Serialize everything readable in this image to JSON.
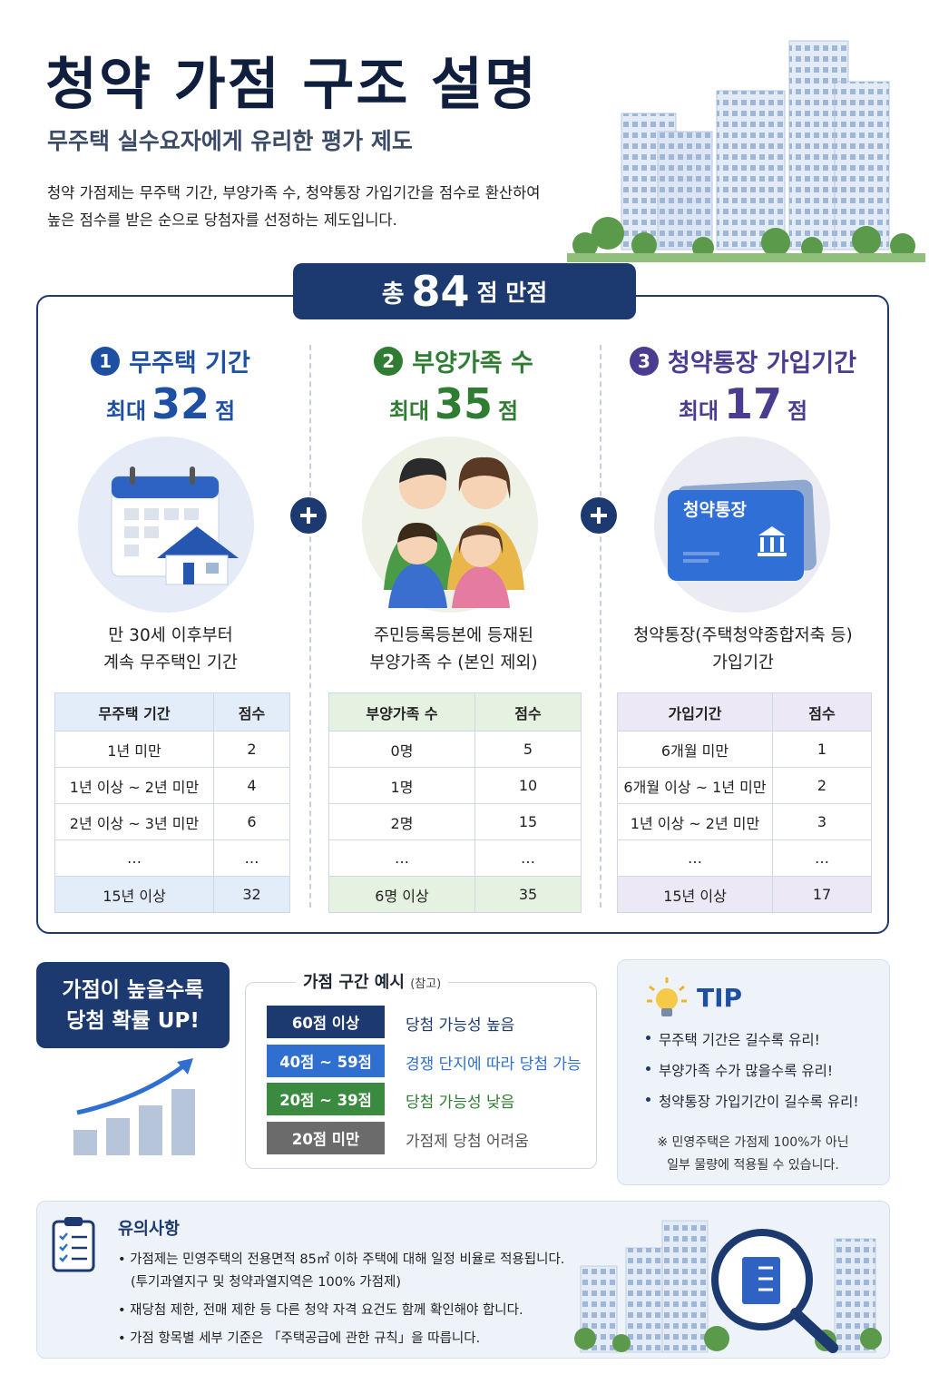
{
  "header": {
    "title": "청약 가점 구조 설명",
    "subtitle": "무주택 실수요자에게 유리한 평가 제도",
    "description": [
      "청약 가점제는 무주택 기간, 부양가족 수, 청약통장 가입기간을 점수로 환산하여",
      "높은 점수를 받은 순으로 당첨자를 선정하는 제도입니다."
    ]
  },
  "total": {
    "prefix": "총",
    "score": "84",
    "suffix": "점 만점"
  },
  "columns": [
    {
      "number": "1",
      "title": "무주택 기간",
      "max_prefix": "최대",
      "max": "32",
      "max_suffix": "점",
      "description": [
        "만 30세 이후부터",
        "계속 무주택인 기간"
      ],
      "table": {
        "header": [
          "무주택 기간",
          "점수"
        ],
        "rows": [
          [
            "1년 미만",
            "2"
          ],
          [
            "1년 이상 ~ 2년 미만",
            "4"
          ],
          [
            "2년 이상 ~ 3년 미만",
            "6"
          ],
          [
            "…",
            "…"
          ],
          [
            "15년 이상",
            "32"
          ]
        ]
      }
    },
    {
      "number": "2",
      "title": "부양가족 수",
      "max_prefix": "최대",
      "max": "35",
      "max_suffix": "점",
      "description": [
        "주민등록등본에 등재된",
        "부양가족 수 (본인 제외)"
      ],
      "table": {
        "header": [
          "부양가족 수",
          "점수"
        ],
        "rows": [
          [
            "0명",
            "5"
          ],
          [
            "1명",
            "10"
          ],
          [
            "2명",
            "15"
          ],
          [
            "…",
            "…"
          ],
          [
            "6명 이상",
            "35"
          ]
        ]
      }
    },
    {
      "number": "3",
      "title": "청약통장 가입기간",
      "max_prefix": "최대",
      "max": "17",
      "max_suffix": "점",
      "icon_label": "청약통장",
      "description": [
        "청약통장(주택청약종합저축 등)",
        "가입기간"
      ],
      "table": {
        "header": [
          "가입기간",
          "점수"
        ],
        "rows": [
          [
            "6개월 미만",
            "1"
          ],
          [
            "6개월 이상 ~ 1년 미만",
            "2"
          ],
          [
            "1년 이상 ~ 2년 미만",
            "3"
          ],
          [
            "…",
            "…"
          ],
          [
            "15년 이상",
            "17"
          ]
        ]
      }
    }
  ],
  "promo": [
    "가점이 높을수록",
    "당첨 확률 UP!"
  ],
  "ranges": {
    "title": "가점 구간 예시",
    "note": "(참고)",
    "items": [
      {
        "range": "60점 이상",
        "description": "당첨 가능성 높음"
      },
      {
        "range": "40점 ~ 59점",
        "description": "경쟁 단지에 따라 당첨 가능"
      },
      {
        "range": "20점 ~ 39점",
        "description": "당첨 가능성 낮음"
      },
      {
        "range": "20점 미만",
        "description": "가점제 당첨 어려움"
      }
    ]
  },
  "tip": {
    "title": "TIP",
    "items": [
      "무주택 기간은 길수록 유리!",
      "부양가족 수가 많을수록 유리!",
      "청약통장 가입기간이 길수록 유리!"
    ],
    "note": [
      "※ 민영주택은 가점제 100%가 아닌",
      "일부 물량에 적용될 수 있습니다."
    ]
  },
  "notice": {
    "title": "유의사항",
    "items": [
      "• 가점제는 민영주택의 전용면적 85㎡ 이하 주택에 대해 일정 비율로 적용됩니다.",
      "(투기과열지구 및 청약과열지역은 100% 가점제)",
      "• 재당첨 제한, 전매 제한 등 다른 청약 자격 요건도 함께 확인해야 합니다.",
      "• 가점 항목별 세부 기준은 「주택공급에 관한 규칙」을 따릅니다."
    ]
  }
}
